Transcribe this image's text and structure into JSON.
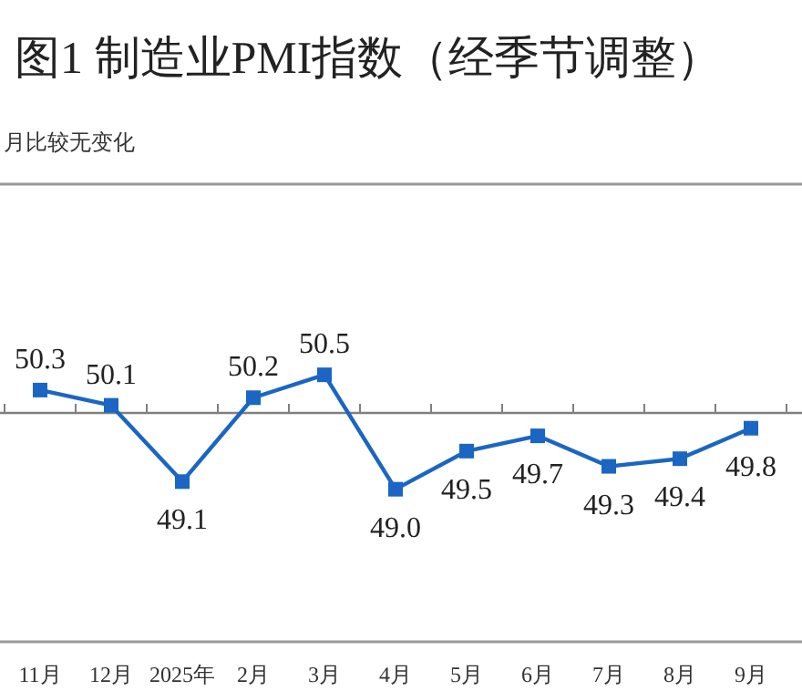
{
  "chart_data": {
    "type": "line",
    "title": "图1  制造业PMI指数（经季节调整）",
    "annotations": [
      "月比较无变化"
    ],
    "categories": [
      "11月",
      "12月",
      "2025年",
      "2月",
      "3月",
      "4月",
      "5月",
      "6月",
      "7月",
      "8月",
      "9月"
    ],
    "series": [
      {
        "color": "#1a66c2",
        "values": [
          50.3,
          50.1,
          49.1,
          50.2,
          50.5,
          49.0,
          49.5,
          49.7,
          49.3,
          49.4,
          49.8
        ],
        "value_labels": [
          "50.3",
          "50.1",
          "49.1",
          "50.2",
          "50.5",
          "49.0",
          "49.5",
          "49.7",
          "49.3",
          "49.4",
          "49.8"
        ]
      }
    ],
    "ylim": [
      47,
      53
    ],
    "tick_labels": "x",
    "marker": "square",
    "line_style": "solid",
    "ref_lines": [
      {
        "axis": "y",
        "value": 50,
        "color": "#808080"
      }
    ]
  }
}
